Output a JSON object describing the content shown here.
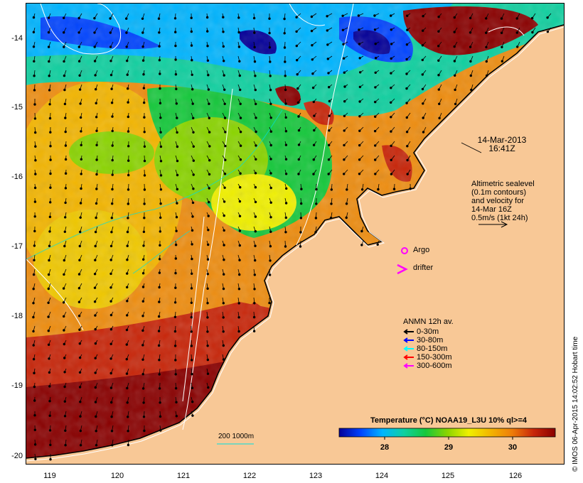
{
  "colors": {
    "land": "#f8c896",
    "sst_ramp": [
      "#050099",
      "#0044ff",
      "#00b5ff",
      "#10d0a0",
      "#16c83c",
      "#8ad400",
      "#f0f000",
      "#f3b500",
      "#ee7d0a",
      "#c8260a",
      "#8a0000"
    ]
  },
  "axes": {
    "y_ticks": [
      "-14",
      "-15",
      "-16",
      "-17",
      "-18",
      "-19",
      "-20"
    ],
    "x_ticks": [
      "119",
      "120",
      "121",
      "122",
      "123",
      "124",
      "125",
      "126"
    ]
  },
  "timestamp": {
    "date": "14-Mar-2013",
    "time": "16:41Z"
  },
  "altimetry_note": {
    "line1": "Altimetric sealevel",
    "line2": "(0.1m contours)",
    "line3": "and velocity for",
    "line4": "14-Mar 16Z",
    "line5": "0.5m/s (1kt 24h)"
  },
  "markers": {
    "argo_label": "Argo",
    "drifter_label": "drifter"
  },
  "anmn_legend": {
    "title": "ANMN 12h av.",
    "items": [
      {
        "label": "0-30m",
        "color": "#000000"
      },
      {
        "label": "30-80m",
        "color": "#0000ff"
      },
      {
        "label": "80-150m",
        "color": "#00ffff"
      },
      {
        "label": "150-300m",
        "color": "#ff0000"
      },
      {
        "label": "300-600m",
        "color": "#ff00ff"
      }
    ]
  },
  "depth_contour_label": "200  1000m",
  "colorbar": {
    "title": "Temperature (°C) NOAA19_L3U 10% ql>=4",
    "ticks": [
      "28",
      "29",
      "30"
    ]
  },
  "credit": "© IMOS 06-Apr-2015 14:02:52 Hobart time"
}
